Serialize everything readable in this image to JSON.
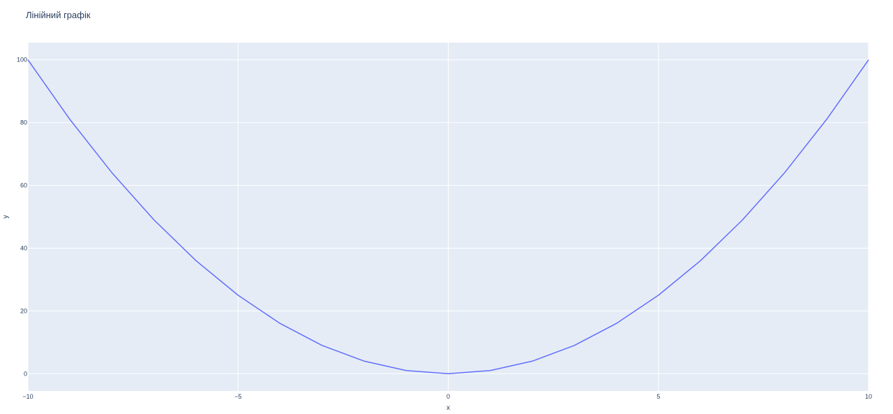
{
  "chart_data": {
    "type": "line",
    "title": "Лінійний графік",
    "xlabel": "x",
    "ylabel": "y",
    "xlim": [
      -10,
      10
    ],
    "ylim": [
      -5.5,
      105.5
    ],
    "x_ticks": [
      -10,
      -5,
      0,
      5,
      10
    ],
    "x_tick_labels": [
      "−10",
      "−5",
      "0",
      "5",
      "10"
    ],
    "y_ticks": [
      0,
      20,
      40,
      60,
      80,
      100
    ],
    "y_tick_labels": [
      "0",
      "20",
      "40",
      "60",
      "80",
      "100"
    ],
    "grid": true,
    "colors": {
      "plot_background": "#e5ecf6",
      "grid": "#ffffff",
      "line": "#636efa",
      "text": "#2a3f5f"
    },
    "series": [
      {
        "x": [
          -10,
          -9,
          -8,
          -7,
          -6,
          -5,
          -4,
          -3,
          -2,
          -1,
          0,
          1,
          2,
          3,
          4,
          5,
          6,
          7,
          8,
          9,
          10
        ],
        "values": [
          100,
          81,
          64,
          49,
          36,
          25,
          16,
          9,
          4,
          1,
          0,
          1,
          4,
          9,
          16,
          25,
          36,
          49,
          64,
          81,
          100
        ]
      }
    ]
  }
}
